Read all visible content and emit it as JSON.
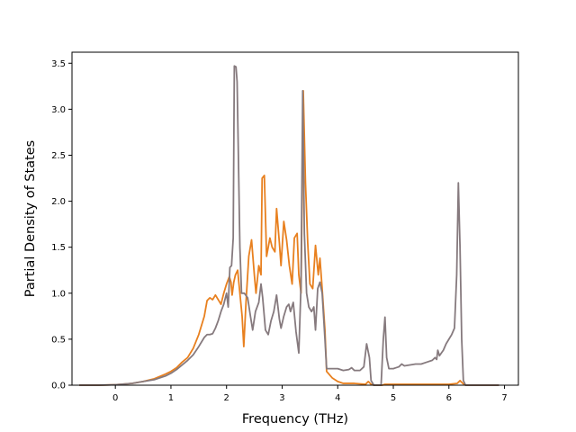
{
  "chart_data": {
    "type": "line",
    "title": "",
    "xlabel": "Frequency (THz)",
    "ylabel": "Partial Density of States",
    "xlim": [
      -0.78,
      7.25
    ],
    "ylim": [
      0,
      3.62
    ],
    "xticks": [
      0,
      1,
      2,
      3,
      4,
      5,
      6,
      7
    ],
    "xtick_labels": [
      "0",
      "1",
      "2",
      "3",
      "4",
      "5",
      "6",
      "7"
    ],
    "yticks": [
      0,
      0.5,
      1.0,
      1.5,
      2.0,
      2.5,
      3.0,
      3.5
    ],
    "ytick_labels": [
      "0.0",
      "0.5",
      "1.0",
      "1.5",
      "2.0",
      "2.5",
      "3.0",
      "3.5"
    ],
    "grid": false,
    "legend": "none",
    "series": [
      {
        "color": "#e8801f",
        "points": [
          [
            -0.65,
            0
          ],
          [
            -0.3,
            0
          ],
          [
            0,
            0.005
          ],
          [
            0.3,
            0.02
          ],
          [
            0.5,
            0.04
          ],
          [
            0.7,
            0.07
          ],
          [
            0.9,
            0.12
          ],
          [
            1.0,
            0.15
          ],
          [
            1.1,
            0.19
          ],
          [
            1.2,
            0.25
          ],
          [
            1.3,
            0.3
          ],
          [
            1.4,
            0.4
          ],
          [
            1.5,
            0.55
          ],
          [
            1.6,
            0.75
          ],
          [
            1.65,
            0.92
          ],
          [
            1.7,
            0.95
          ],
          [
            1.75,
            0.93
          ],
          [
            1.8,
            0.98
          ],
          [
            1.85,
            0.93
          ],
          [
            1.9,
            0.88
          ],
          [
            1.95,
            1.0
          ],
          [
            2.0,
            1.1
          ],
          [
            2.05,
            1.18
          ],
          [
            2.08,
            1.12
          ],
          [
            2.1,
            0.98
          ],
          [
            2.13,
            1.12
          ],
          [
            2.16,
            1.2
          ],
          [
            2.2,
            1.25
          ],
          [
            2.24,
            1.0
          ],
          [
            2.28,
            0.75
          ],
          [
            2.31,
            0.42
          ],
          [
            2.35,
            0.9
          ],
          [
            2.4,
            1.4
          ],
          [
            2.45,
            1.58
          ],
          [
            2.5,
            1.2
          ],
          [
            2.53,
            1.0
          ],
          [
            2.58,
            1.3
          ],
          [
            2.62,
            1.2
          ],
          [
            2.64,
            2.25
          ],
          [
            2.68,
            2.28
          ],
          [
            2.72,
            1.4
          ],
          [
            2.78,
            1.6
          ],
          [
            2.82,
            1.5
          ],
          [
            2.87,
            1.45
          ],
          [
            2.9,
            1.92
          ],
          [
            2.95,
            1.55
          ],
          [
            2.98,
            1.3
          ],
          [
            3.03,
            1.78
          ],
          [
            3.08,
            1.58
          ],
          [
            3.13,
            1.3
          ],
          [
            3.18,
            1.1
          ],
          [
            3.22,
            1.6
          ],
          [
            3.27,
            1.65
          ],
          [
            3.3,
            1.2
          ],
          [
            3.34,
            1.0
          ],
          [
            3.38,
            3.2
          ],
          [
            3.42,
            2.2
          ],
          [
            3.46,
            1.55
          ],
          [
            3.5,
            1.1
          ],
          [
            3.55,
            1.05
          ],
          [
            3.6,
            1.52
          ],
          [
            3.65,
            1.2
          ],
          [
            3.68,
            1.38
          ],
          [
            3.72,
            1.05
          ],
          [
            3.77,
            0.6
          ],
          [
            3.8,
            0.15
          ],
          [
            3.9,
            0.08
          ],
          [
            4.0,
            0.04
          ],
          [
            4.1,
            0.02
          ],
          [
            4.3,
            0.02
          ],
          [
            4.5,
            0.01
          ],
          [
            4.55,
            0.04
          ],
          [
            4.6,
            0.01
          ],
          [
            4.65,
            0
          ],
          [
            4.8,
            0
          ],
          [
            4.85,
            0.01
          ],
          [
            5.0,
            0.01
          ],
          [
            5.5,
            0.01
          ],
          [
            6.0,
            0.01
          ],
          [
            6.15,
            0.02
          ],
          [
            6.2,
            0.05
          ],
          [
            6.25,
            0.02
          ],
          [
            6.3,
            0
          ],
          [
            6.5,
            0
          ],
          [
            6.9,
            0
          ]
        ]
      },
      {
        "color": "#867a7e",
        "points": [
          [
            -0.65,
            0
          ],
          [
            -0.3,
            0
          ],
          [
            0,
            0.005
          ],
          [
            0.3,
            0.02
          ],
          [
            0.5,
            0.04
          ],
          [
            0.7,
            0.06
          ],
          [
            0.9,
            0.1
          ],
          [
            1.0,
            0.13
          ],
          [
            1.1,
            0.17
          ],
          [
            1.2,
            0.22
          ],
          [
            1.3,
            0.27
          ],
          [
            1.4,
            0.33
          ],
          [
            1.5,
            0.42
          ],
          [
            1.6,
            0.52
          ],
          [
            1.65,
            0.55
          ],
          [
            1.7,
            0.55
          ],
          [
            1.75,
            0.56
          ],
          [
            1.8,
            0.62
          ],
          [
            1.85,
            0.7
          ],
          [
            1.9,
            0.8
          ],
          [
            1.95,
            0.88
          ],
          [
            2.0,
            1.0
          ],
          [
            2.03,
            0.85
          ],
          [
            2.06,
            1.28
          ],
          [
            2.09,
            1.3
          ],
          [
            2.12,
            1.6
          ],
          [
            2.14,
            3.47
          ],
          [
            2.17,
            3.46
          ],
          [
            2.19,
            3.3
          ],
          [
            2.21,
            2.6
          ],
          [
            2.24,
            1.5
          ],
          [
            2.27,
            1.0
          ],
          [
            2.32,
            1.0
          ],
          [
            2.38,
            0.95
          ],
          [
            2.43,
            0.75
          ],
          [
            2.47,
            0.6
          ],
          [
            2.52,
            0.8
          ],
          [
            2.58,
            0.9
          ],
          [
            2.62,
            1.1
          ],
          [
            2.65,
            0.95
          ],
          [
            2.7,
            0.6
          ],
          [
            2.75,
            0.55
          ],
          [
            2.8,
            0.7
          ],
          [
            2.85,
            0.8
          ],
          [
            2.9,
            0.98
          ],
          [
            2.95,
            0.72
          ],
          [
            2.98,
            0.62
          ],
          [
            3.03,
            0.75
          ],
          [
            3.08,
            0.85
          ],
          [
            3.12,
            0.88
          ],
          [
            3.15,
            0.8
          ],
          [
            3.2,
            0.9
          ],
          [
            3.25,
            0.58
          ],
          [
            3.3,
            0.35
          ],
          [
            3.34,
            1.1
          ],
          [
            3.37,
            3.2
          ],
          [
            3.4,
            1.65
          ],
          [
            3.44,
            1.0
          ],
          [
            3.48,
            0.85
          ],
          [
            3.53,
            0.8
          ],
          [
            3.57,
            0.85
          ],
          [
            3.6,
            0.6
          ],
          [
            3.64,
            1.05
          ],
          [
            3.68,
            1.12
          ],
          [
            3.72,
            1.0
          ],
          [
            3.77,
            0.5
          ],
          [
            3.8,
            0.18
          ],
          [
            3.9,
            0.18
          ],
          [
            4.0,
            0.18
          ],
          [
            4.1,
            0.16
          ],
          [
            4.2,
            0.17
          ],
          [
            4.25,
            0.19
          ],
          [
            4.3,
            0.16
          ],
          [
            4.4,
            0.16
          ],
          [
            4.47,
            0.2
          ],
          [
            4.52,
            0.45
          ],
          [
            4.57,
            0.3
          ],
          [
            4.6,
            0.05
          ],
          [
            4.65,
            0
          ],
          [
            4.78,
            0
          ],
          [
            4.82,
            0.5
          ],
          [
            4.85,
            0.74
          ],
          [
            4.88,
            0.3
          ],
          [
            4.92,
            0.18
          ],
          [
            5.0,
            0.18
          ],
          [
            5.05,
            0.19
          ],
          [
            5.1,
            0.2
          ],
          [
            5.15,
            0.23
          ],
          [
            5.2,
            0.21
          ],
          [
            5.3,
            0.22
          ],
          [
            5.4,
            0.23
          ],
          [
            5.5,
            0.23
          ],
          [
            5.6,
            0.25
          ],
          [
            5.7,
            0.27
          ],
          [
            5.75,
            0.3
          ],
          [
            5.78,
            0.28
          ],
          [
            5.8,
            0.38
          ],
          [
            5.83,
            0.32
          ],
          [
            5.9,
            0.38
          ],
          [
            5.95,
            0.45
          ],
          [
            6.0,
            0.5
          ],
          [
            6.05,
            0.55
          ],
          [
            6.1,
            0.62
          ],
          [
            6.14,
            1.2
          ],
          [
            6.17,
            2.2
          ],
          [
            6.2,
            1.5
          ],
          [
            6.23,
            0.5
          ],
          [
            6.26,
            0.05
          ],
          [
            6.3,
            0
          ],
          [
            6.5,
            0
          ],
          [
            6.9,
            0
          ]
        ]
      }
    ]
  }
}
